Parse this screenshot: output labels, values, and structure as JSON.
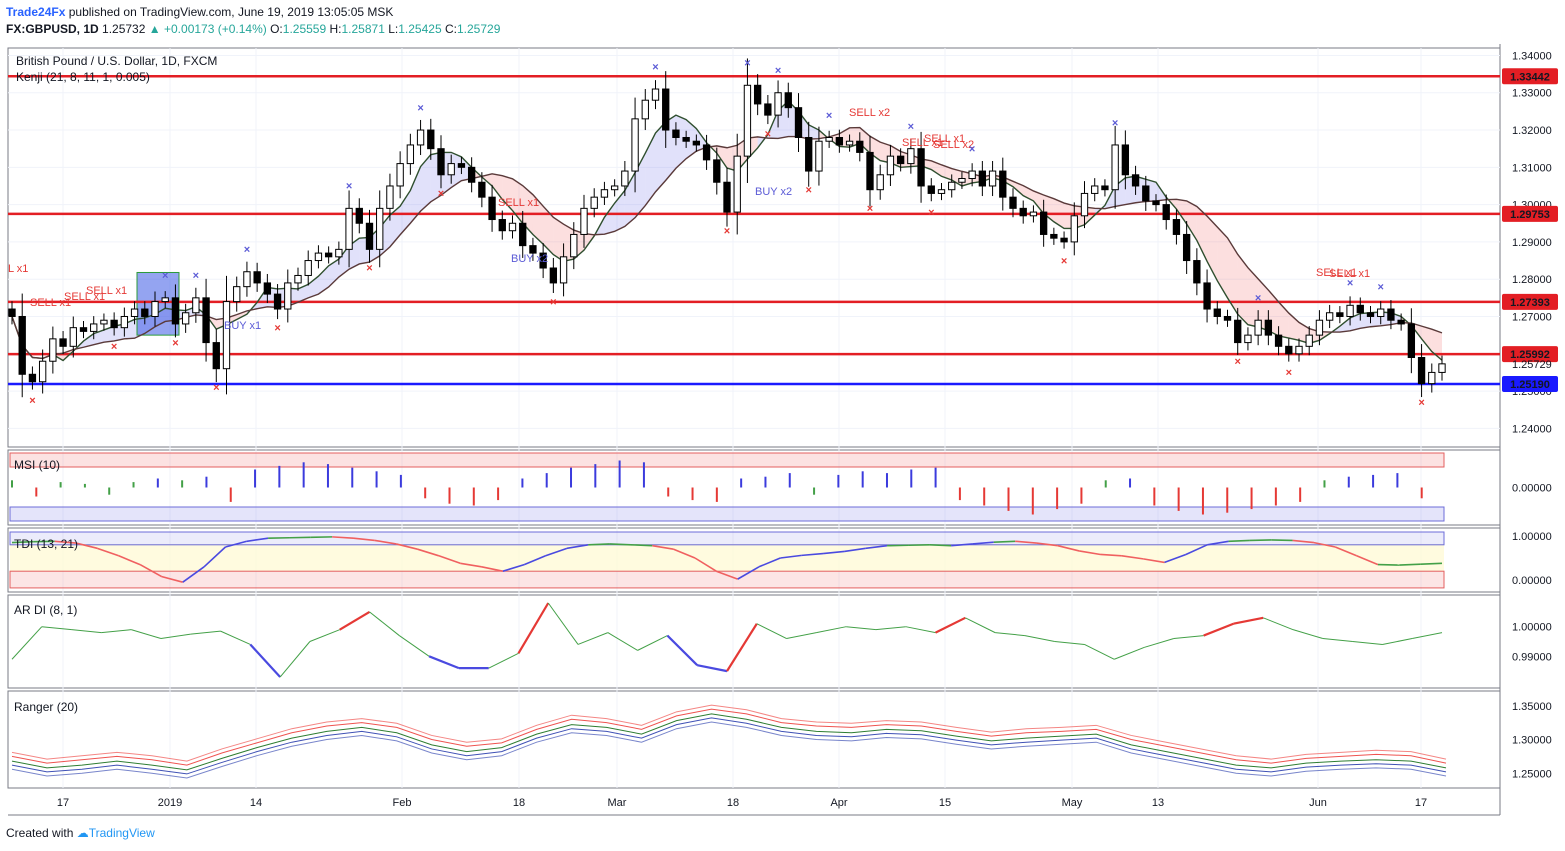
{
  "header": {
    "brand": "Trade24Fx",
    "published": "published on TradingView.com, June 19, 2019 13:05:05 MSK",
    "symbol": "FX:GBPUSD, 1D",
    "last": "1.25732",
    "arrow": "▲",
    "change": "+0.00173 (+0.14%)",
    "o_label": "O:",
    "o": "1.25559",
    "h_label": "H:",
    "h": "1.25871",
    "l_label": "L:",
    "l": "1.25425",
    "c_label": "C:",
    "c": "1.25729"
  },
  "footer": {
    "created": "Created with",
    "brand": "TradingView"
  },
  "colors": {
    "up": "#26a69a",
    "red_level": "#e31e24",
    "blue_level": "#1a1aff",
    "buy": "#5b5bd6",
    "sell": "#e53935"
  },
  "chart_data": [
    {
      "type": "candlestick",
      "title": "British Pound / U.S. Dollar, 1D, FXCM",
      "indicator": "Kenji (21, 8, 11, 1, 0.005)",
      "ylim": [
        1.235,
        1.342
      ],
      "y_ticks": [
        "1.34000",
        "1.33000",
        "1.32000",
        "1.31000",
        "1.30000",
        "1.29000",
        "1.28000",
        "1.27000",
        "1.26000",
        "1.25000",
        "1.24000"
      ],
      "x_ticks": [
        "17",
        "2019",
        "14",
        "Feb",
        "18",
        "Mar",
        "18",
        "Apr",
        "15",
        "May",
        "13",
        "Jun",
        "17"
      ],
      "levels": [
        {
          "value": 1.33442,
          "label": "1.33442",
          "color": "#e31e24"
        },
        {
          "value": 1.29753,
          "label": "1.29753",
          "color": "#e31e24"
        },
        {
          "value": 1.27393,
          "label": "1.27393",
          "color": "#e31e24"
        },
        {
          "value": 1.25992,
          "label": "1.25992",
          "color": "#e31e24"
        },
        {
          "value": 1.2519,
          "label": "1.25190",
          "color": "#1a1aff"
        }
      ],
      "last_price": {
        "value": 1.25729,
        "label": "1.25729"
      },
      "closes": [
        1.27,
        1.2545,
        1.2525,
        1.258,
        1.264,
        1.262,
        1.267,
        1.266,
        1.268,
        1.269,
        1.267,
        1.27,
        1.272,
        1.27,
        1.274,
        1.275,
        1.268,
        1.271,
        1.275,
        1.263,
        1.256,
        1.274,
        1.278,
        1.282,
        1.279,
        1.276,
        1.272,
        1.279,
        1.281,
        1.285,
        1.287,
        1.286,
        1.288,
        1.299,
        1.295,
        1.288,
        1.299,
        1.305,
        1.311,
        1.316,
        1.32,
        1.315,
        1.308,
        1.311,
        1.31,
        1.306,
        1.302,
        1.296,
        1.293,
        1.295,
        1.289,
        1.287,
        1.283,
        1.279,
        1.286,
        1.292,
        1.299,
        1.302,
        1.304,
        1.305,
        1.309,
        1.323,
        1.328,
        1.331,
        1.32,
        1.318,
        1.317,
        1.316,
        1.312,
        1.306,
        1.298,
        1.313,
        1.332,
        1.327,
        1.324,
        1.33,
        1.326,
        1.318,
        1.309,
        1.317,
        1.318,
        1.316,
        1.317,
        1.314,
        1.304,
        1.308,
        1.313,
        1.311,
        1.315,
        1.305,
        1.303,
        1.304,
        1.306,
        1.307,
        1.309,
        1.305,
        1.309,
        1.302,
        1.299,
        1.297,
        1.298,
        1.292,
        1.291,
        1.29,
        1.297,
        1.303,
        1.305,
        1.304,
        1.316,
        1.308,
        1.305,
        1.301,
        1.3,
        1.296,
        1.292,
        1.285,
        1.279,
        1.272,
        1.27,
        1.269,
        1.263,
        1.265,
        1.269,
        1.265,
        1.262,
        1.26,
        1.262,
        1.265,
        1.269,
        1.271,
        1.27,
        1.273,
        1.271,
        1.27,
        1.272,
        1.269,
        1.268,
        1.259,
        1.252,
        1.255,
        1.2573
      ],
      "signals": [
        "SELL x1",
        "SELL x1",
        "SELL x1",
        "BUY x1",
        "SELL x1",
        "BUY x2",
        "SELL x2",
        "BUY x2",
        "SELL x1",
        "SELL x1",
        "SELL x2",
        "SELL x1",
        "SELL x1",
        "L x1"
      ]
    },
    {
      "type": "bar",
      "title": "MSI (10)",
      "y_ticks": [
        "0.00000"
      ],
      "values": [
        0.04,
        -0.05,
        0.03,
        0.02,
        -0.04,
        0.03,
        0.05,
        0.04,
        0.06,
        -0.08,
        0.1,
        0.12,
        0.14,
        0.13,
        0.11,
        0.09,
        0.07,
        -0.06,
        -0.09,
        -0.1,
        -0.07,
        0.05,
        0.08,
        0.11,
        0.13,
        0.15,
        0.14,
        -0.05,
        -0.07,
        -0.08,
        0.05,
        0.06,
        0.08,
        -0.04,
        0.07,
        0.09,
        0.08,
        0.1,
        0.11,
        -0.07,
        -0.1,
        -0.13,
        -0.15,
        -0.12,
        -0.09,
        0.04,
        0.05,
        -0.1,
        -0.13,
        -0.15,
        -0.14,
        -0.12,
        -0.1,
        -0.08,
        0.04,
        0.06,
        0.07,
        0.08,
        -0.06
      ]
    },
    {
      "type": "line",
      "title": "TDI (13, 21)",
      "y_ticks": [
        "1.00000",
        "0.00000"
      ],
      "values": [
        0.85,
        0.87,
        0.88,
        0.84,
        0.72,
        0.55,
        0.35,
        0.08,
        -0.05,
        0.3,
        0.75,
        0.88,
        0.95,
        0.96,
        0.97,
        0.98,
        0.95,
        0.9,
        0.82,
        0.7,
        0.55,
        0.38,
        0.3,
        0.2,
        0.35,
        0.55,
        0.72,
        0.8,
        0.82,
        0.8,
        0.78,
        0.7,
        0.5,
        0.2,
        0.02,
        0.3,
        0.5,
        0.56,
        0.6,
        0.65,
        0.72,
        0.78,
        0.79,
        0.8,
        0.78,
        0.82,
        0.86,
        0.88,
        0.84,
        0.78,
        0.66,
        0.58,
        0.55,
        0.48,
        0.4,
        0.58,
        0.8,
        0.88,
        0.9,
        0.91,
        0.9,
        0.85,
        0.75,
        0.55,
        0.35,
        0.34,
        0.36,
        0.38
      ]
    },
    {
      "type": "line",
      "title": "AR DI (8, 1)",
      "y_ticks": [
        "1.00000",
        "0.99000"
      ],
      "values": [
        0.989,
        1.0,
        0.999,
        0.998,
        0.999,
        0.996,
        0.9975,
        0.9985,
        0.994,
        0.983,
        0.995,
        0.999,
        1.005,
        0.997,
        0.99,
        0.986,
        0.986,
        0.991,
        1.008,
        0.994,
        0.998,
        0.992,
        0.997,
        0.987,
        0.985,
        1.001,
        0.996,
        0.998,
        1.0,
        0.999,
        1.0,
        0.998,
        1.003,
        0.998,
        0.997,
        0.995,
        0.994,
        0.989,
        0.993,
        0.996,
        0.997,
        1.001,
        1.003,
        0.999,
        0.996,
        0.995,
        0.994,
        0.996,
        0.998
      ]
    },
    {
      "type": "line",
      "title": "Ranger (20)",
      "y_ticks": [
        "1.35000",
        "1.30000",
        "1.25000"
      ],
      "series": [
        {
          "values": [
            1.275,
            1.265,
            1.27,
            1.275,
            1.27,
            1.262,
            1.28,
            1.295,
            1.31,
            1.32,
            1.325,
            1.318,
            1.3,
            1.29,
            1.295,
            1.315,
            1.33,
            1.325,
            1.315,
            1.335,
            1.345,
            1.338,
            1.325,
            1.32,
            1.318,
            1.322,
            1.32,
            1.312,
            1.305,
            1.31,
            1.312,
            1.315,
            1.3,
            1.29,
            1.28,
            1.27,
            1.265,
            1.272,
            1.275,
            1.278,
            1.276,
            1.265
          ]
        },
        {
          "values": [
            1.268,
            1.258,
            1.262,
            1.268,
            1.262,
            1.255,
            1.272,
            1.288,
            1.302,
            1.312,
            1.318,
            1.31,
            1.292,
            1.282,
            1.288,
            1.308,
            1.322,
            1.318,
            1.308,
            1.328,
            1.338,
            1.33,
            1.318,
            1.312,
            1.31,
            1.315,
            1.313,
            1.305,
            1.298,
            1.302,
            1.305,
            1.308,
            1.292,
            1.282,
            1.272,
            1.262,
            1.258,
            1.265,
            1.268,
            1.27,
            1.268,
            1.258
          ]
        },
        {
          "values": [
            1.262,
            1.252,
            1.256,
            1.262,
            1.256,
            1.249,
            1.266,
            1.282,
            1.296,
            1.306,
            1.312,
            1.304,
            1.286,
            1.276,
            1.282,
            1.302,
            1.316,
            1.312,
            1.302,
            1.322,
            1.332,
            1.324,
            1.312,
            1.306,
            1.304,
            1.309,
            1.307,
            1.299,
            1.292,
            1.296,
            1.299,
            1.302,
            1.286,
            1.276,
            1.266,
            1.256,
            1.252,
            1.259,
            1.262,
            1.264,
            1.262,
            1.252
          ]
        }
      ]
    }
  ]
}
